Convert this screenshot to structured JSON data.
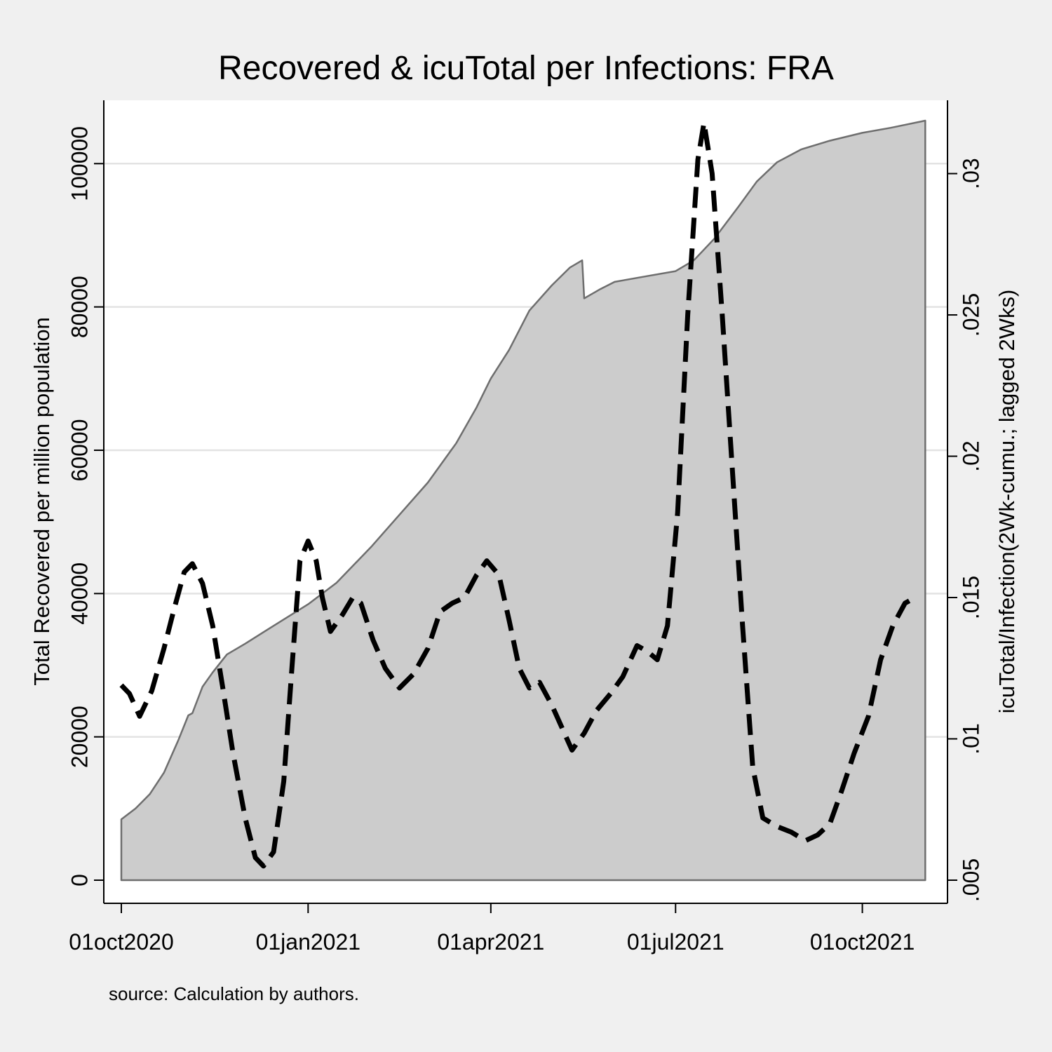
{
  "chart_data": {
    "type": "area",
    "title": "Recovered & icuTotal per Infections: FRA",
    "note": "source: Calculation by authors.",
    "x_axis": {
      "type": "date",
      "range": [
        "2020-10-01",
        "2021-11-04"
      ],
      "ticks": [
        {
          "date": "2020-10-01",
          "label": "01oct2020"
        },
        {
          "date": "2021-01-01",
          "label": "01jan2021"
        },
        {
          "date": "2021-04-01",
          "label": "01apr2021"
        },
        {
          "date": "2021-07-01",
          "label": "01jul2021"
        },
        {
          "date": "2021-10-01",
          "label": "01oct2021"
        }
      ]
    },
    "y_left": {
      "label": "Total Recovered per million population",
      "range": [
        0,
        106000
      ],
      "ticks": [
        0,
        20000,
        40000,
        60000,
        80000,
        100000
      ],
      "tick_labels": [
        "0",
        "20000",
        "40000",
        "60000",
        "80000",
        "100000"
      ],
      "grid": true
    },
    "y_right": {
      "label": "icuTotal/Infection(2Wk-cumu.; lagged 2Wks)",
      "range": [
        0.005,
        0.0318
      ],
      "ticks": [
        0.005,
        0.01,
        0.015,
        0.02,
        0.025,
        0.03
      ],
      "tick_labels": [
        ".005",
        ".01",
        ".015",
        ".02",
        ".025",
        ".03"
      ]
    },
    "series": [
      {
        "style": "area",
        "axis": "left",
        "color": "#cccccc",
        "edge_color": "#6e6e6e",
        "points": [
          [
            "2020-10-01",
            8500
          ],
          [
            "2020-10-08",
            10000
          ],
          [
            "2020-10-15",
            12000
          ],
          [
            "2020-10-22",
            15000
          ],
          [
            "2020-10-29",
            19500
          ],
          [
            "2020-11-03",
            23000
          ],
          [
            "2020-11-05",
            23300
          ],
          [
            "2020-11-10",
            27000
          ],
          [
            "2020-11-15",
            29000
          ],
          [
            "2020-11-22",
            31500
          ],
          [
            "2020-12-01",
            33000
          ],
          [
            "2020-12-15",
            35500
          ],
          [
            "2021-01-01",
            38500
          ],
          [
            "2021-01-15",
            41500
          ],
          [
            "2021-02-01",
            46500
          ],
          [
            "2021-02-15",
            51000
          ],
          [
            "2021-03-01",
            55500
          ],
          [
            "2021-03-15",
            61000
          ],
          [
            "2021-03-25",
            66000
          ],
          [
            "2021-04-01",
            70000
          ],
          [
            "2021-04-10",
            74000
          ],
          [
            "2021-04-20",
            79500
          ],
          [
            "2021-05-01",
            83000
          ],
          [
            "2021-05-10",
            85500
          ],
          [
            "2021-05-16",
            86500
          ],
          [
            "2021-05-17",
            81200
          ],
          [
            "2021-05-25",
            82500
          ],
          [
            "2021-06-01",
            83500
          ],
          [
            "2021-06-15",
            84200
          ],
          [
            "2021-07-01",
            85000
          ],
          [
            "2021-07-10",
            86500
          ],
          [
            "2021-07-20",
            89500
          ],
          [
            "2021-08-01",
            94000
          ],
          [
            "2021-08-10",
            97500
          ],
          [
            "2021-08-20",
            100200
          ],
          [
            "2021-09-01",
            102000
          ],
          [
            "2021-09-15",
            103200
          ],
          [
            "2021-10-01",
            104300
          ],
          [
            "2021-10-15",
            105000
          ],
          [
            "2021-11-01",
            106000
          ]
        ]
      },
      {
        "style": "dashed-line",
        "axis": "right",
        "color": "#000000",
        "points": [
          [
            "2020-10-01",
            0.0119
          ],
          [
            "2020-10-05",
            0.0116
          ],
          [
            "2020-10-10",
            0.0108
          ],
          [
            "2020-10-16",
            0.0117
          ],
          [
            "2020-10-22",
            0.0132
          ],
          [
            "2020-10-27",
            0.0146
          ],
          [
            "2020-11-01",
            0.0159
          ],
          [
            "2020-11-05",
            0.0162
          ],
          [
            "2020-11-10",
            0.0155
          ],
          [
            "2020-11-15",
            0.014
          ],
          [
            "2020-11-20",
            0.0118
          ],
          [
            "2020-11-25",
            0.0095
          ],
          [
            "2020-12-01",
            0.0072
          ],
          [
            "2020-12-06",
            0.0058
          ],
          [
            "2020-12-10",
            0.0055
          ],
          [
            "2020-12-15",
            0.006
          ],
          [
            "2020-12-20",
            0.0085
          ],
          [
            "2020-12-24",
            0.0125
          ],
          [
            "2020-12-28",
            0.0163
          ],
          [
            "2021-01-01",
            0.017
          ],
          [
            "2021-01-05",
            0.0163
          ],
          [
            "2021-01-08",
            0.015
          ],
          [
            "2021-01-12",
            0.0138
          ],
          [
            "2021-01-18",
            0.0144
          ],
          [
            "2021-01-23",
            0.015
          ],
          [
            "2021-01-27",
            0.0148
          ],
          [
            "2021-02-02",
            0.0135
          ],
          [
            "2021-02-08",
            0.0125
          ],
          [
            "2021-02-15",
            0.0118
          ],
          [
            "2021-02-22",
            0.0123
          ],
          [
            "2021-03-01",
            0.0132
          ],
          [
            "2021-03-07",
            0.0145
          ],
          [
            "2021-03-13",
            0.0148
          ],
          [
            "2021-03-19",
            0.015
          ],
          [
            "2021-03-25",
            0.0158
          ],
          [
            "2021-03-30",
            0.0163
          ],
          [
            "2021-04-05",
            0.0158
          ],
          [
            "2021-04-10",
            0.0142
          ],
          [
            "2021-04-15",
            0.0125
          ],
          [
            "2021-04-20",
            0.0118
          ],
          [
            "2021-04-25",
            0.012
          ],
          [
            "2021-05-01",
            0.0112
          ],
          [
            "2021-05-06",
            0.0104
          ],
          [
            "2021-05-11",
            0.0096
          ],
          [
            "2021-05-17",
            0.0102
          ],
          [
            "2021-05-23",
            0.011
          ],
          [
            "2021-05-30",
            0.0116
          ],
          [
            "2021-06-05",
            0.0122
          ],
          [
            "2021-06-12",
            0.0133
          ],
          [
            "2021-06-17",
            0.0131
          ],
          [
            "2021-06-22",
            0.0128
          ],
          [
            "2021-06-27",
            0.014
          ],
          [
            "2021-07-02",
            0.018
          ],
          [
            "2021-07-07",
            0.025
          ],
          [
            "2021-07-12",
            0.0305
          ],
          [
            "2021-07-15",
            0.0318
          ],
          [
            "2021-07-19",
            0.03
          ],
          [
            "2021-07-24",
            0.025
          ],
          [
            "2021-07-29",
            0.0195
          ],
          [
            "2021-08-03",
            0.014
          ],
          [
            "2021-08-08",
            0.009
          ],
          [
            "2021-08-13",
            0.0072
          ],
          [
            "2021-08-20",
            0.0069
          ],
          [
            "2021-08-27",
            0.0067
          ],
          [
            "2021-09-03",
            0.0064
          ],
          [
            "2021-09-09",
            0.0066
          ],
          [
            "2021-09-15",
            0.007
          ],
          [
            "2021-09-21",
            0.0082
          ],
          [
            "2021-09-27",
            0.0095
          ],
          [
            "2021-10-04",
            0.0108
          ],
          [
            "2021-10-10",
            0.0128
          ],
          [
            "2021-10-16",
            0.014
          ],
          [
            "2021-10-22",
            0.0148
          ],
          [
            "2021-10-27",
            0.015
          ]
        ]
      }
    ]
  }
}
